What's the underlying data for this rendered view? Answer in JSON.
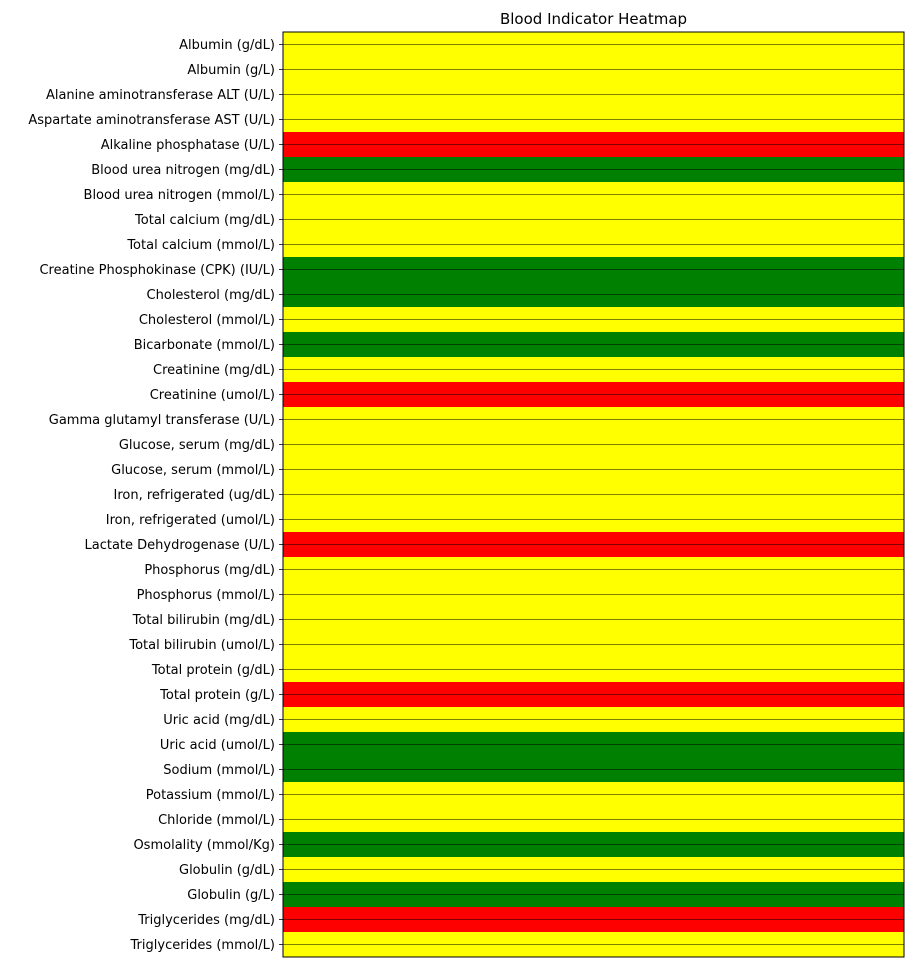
{
  "chart_data": {
    "type": "heatmap",
    "title": "Blood Indicator Heatmap",
    "xlabel": "",
    "ylabel": "",
    "categories": [
      "Albumin (g/dL)",
      "Albumin (g/L)",
      "Alanine aminotransferase ALT (U/L)",
      "Aspartate aminotransferase AST (U/L)",
      "Alkaline phosphatase (U/L)",
      "Blood urea nitrogen (mg/dL)",
      "Blood urea nitrogen (mmol/L)",
      "Total calcium (mg/dL)",
      "Total calcium (mmol/L)",
      "Creatine Phosphokinase (CPK) (IU/L)",
      "Cholesterol (mg/dL)",
      "Cholesterol (mmol/L)",
      "Bicarbonate (mmol/L)",
      "Creatinine (mg/dL)",
      "Creatinine (umol/L)",
      "Gamma glutamyl transferase (U/L)",
      "Glucose, serum (mg/dL)",
      "Glucose, serum (mmol/L)",
      "Iron, refrigerated (ug/dL)",
      "Iron, refrigerated (umol/L)",
      "Lactate Dehydrogenase (U/L)",
      "Phosphorus (mg/dL)",
      "Phosphorus (mmol/L)",
      "Total bilirubin (mg/dL)",
      "Total bilirubin (umol/L)",
      "Total protein (g/dL)",
      "Total protein (g/L)",
      "Uric acid (mg/dL)",
      "Uric acid (umol/L)",
      "Sodium (mmol/L)",
      "Potassium (mmol/L)",
      "Chloride (mmol/L)",
      "Osmolality (mmol/Kg)",
      "Globulin (g/dL)",
      "Globulin (g/L)",
      "Triglycerides (mg/dL)",
      "Triglycerides (mmol/L)"
    ],
    "values": [
      "yellow",
      "yellow",
      "yellow",
      "yellow",
      "red",
      "green",
      "yellow",
      "yellow",
      "yellow",
      "green",
      "green",
      "yellow",
      "green",
      "yellow",
      "red",
      "yellow",
      "yellow",
      "yellow",
      "yellow",
      "yellow",
      "red",
      "yellow",
      "yellow",
      "yellow",
      "yellow",
      "yellow",
      "red",
      "yellow",
      "green",
      "green",
      "yellow",
      "yellow",
      "green",
      "yellow",
      "green",
      "red",
      "yellow"
    ],
    "colors": {
      "yellow": "#ffff00",
      "green": "#008000",
      "red": "#ff0000"
    },
    "grid": true,
    "show_x_ticks": false
  }
}
